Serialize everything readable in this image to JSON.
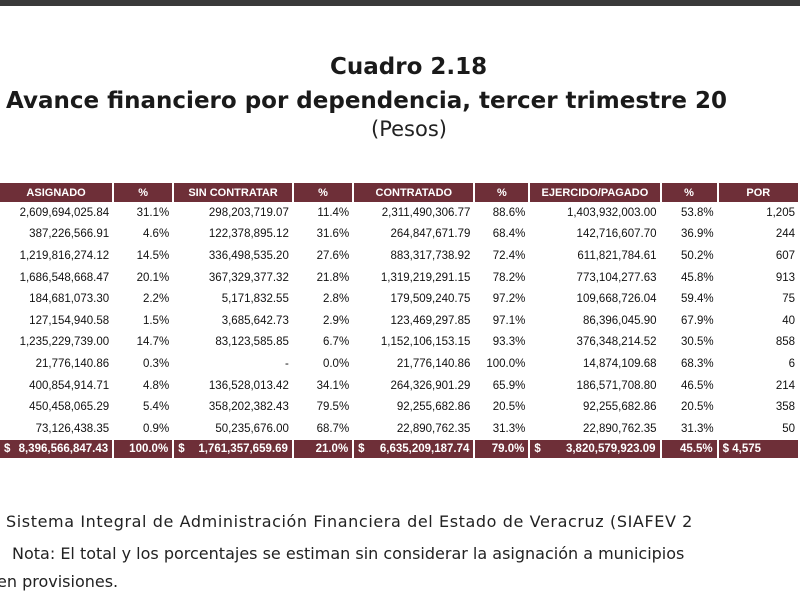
{
  "title": {
    "line1": "Cuadro 2.18",
    "line2": "Avance financiero por dependencia, tercer trimestre 20",
    "line3": "(Pesos)"
  },
  "colors": {
    "header_bg": "#6e2f38",
    "header_text": "#ffffff"
  },
  "table": {
    "headers": [
      "ASIGNADO",
      "%",
      "SIN CONTRATAR",
      "%",
      "CONTRATADO",
      "%",
      "EJERCIDO/PAGADO",
      "%",
      "POR"
    ],
    "rows": [
      [
        "2,609,694,025.84",
        "31.1%",
        "298,203,719.07",
        "11.4%",
        "2,311,490,306.77",
        "88.6%",
        "1,403,932,003.00",
        "53.8%",
        "1,205"
      ],
      [
        "387,226,566.91",
        "4.6%",
        "122,378,895.12",
        "31.6%",
        "264,847,671.79",
        "68.4%",
        "142,716,607.70",
        "36.9%",
        "244"
      ],
      [
        "1,219,816,274.12",
        "14.5%",
        "336,498,535.20",
        "27.6%",
        "883,317,738.92",
        "72.4%",
        "611,821,784.61",
        "50.2%",
        "607"
      ],
      [
        "1,686,548,668.47",
        "20.1%",
        "367,329,377.32",
        "21.8%",
        "1,319,219,291.15",
        "78.2%",
        "773,104,277.63",
        "45.8%",
        "913"
      ],
      [
        "184,681,073.30",
        "2.2%",
        "5,171,832.55",
        "2.8%",
        "179,509,240.75",
        "97.2%",
        "109,668,726.04",
        "59.4%",
        "75"
      ],
      [
        "127,154,940.58",
        "1.5%",
        "3,685,642.73",
        "2.9%",
        "123,469,297.85",
        "97.1%",
        "86,396,045.90",
        "67.9%",
        "40"
      ],
      [
        "1,235,229,739.00",
        "14.7%",
        "83,123,585.85",
        "6.7%",
        "1,152,106,153.15",
        "93.3%",
        "376,348,214.52",
        "30.5%",
        "858"
      ],
      [
        "21,776,140.86",
        "0.3%",
        "-",
        "0.0%",
        "21,776,140.86",
        "100.0%",
        "14,874,109.68",
        "68.3%",
        "6"
      ],
      [
        "400,854,914.71",
        "4.8%",
        "136,528,013.42",
        "34.1%",
        "264,326,901.29",
        "65.9%",
        "186,571,708.80",
        "46.5%",
        "214"
      ],
      [
        "450,458,065.29",
        "5.4%",
        "358,202,382.43",
        "79.5%",
        "92,255,682.86",
        "20.5%",
        "92,255,682.86",
        "20.5%",
        "358"
      ],
      [
        "73,126,438.35",
        "0.9%",
        "50,235,676.00",
        "68.7%",
        "22,890,762.35",
        "31.3%",
        "22,890,762.35",
        "31.3%",
        "50"
      ]
    ],
    "total": {
      "asignado_cur": "$",
      "asignado": "8,396,566,847.43",
      "asignado_pct": "100.0%",
      "sin_cur": "$",
      "sin": "1,761,357,659.69",
      "sin_pct": "21.0%",
      "contratado_cur": "$",
      "contratado": "6,635,209,187.74",
      "contratado_pct": "79.0%",
      "ejercido_cur": "$",
      "ejercido": "3,820,579,923.09",
      "ejercido_pct": "45.5%",
      "por": "$ 4,575"
    }
  },
  "footer": {
    "line1": "Sistema Integral de Administración Financiera del Estado de Veracruz (SIAFEV 2",
    "line2": "Nota: El total y los porcentajes se estiman sin considerar la asignación a municipios",
    "line3": "en provisiones."
  }
}
